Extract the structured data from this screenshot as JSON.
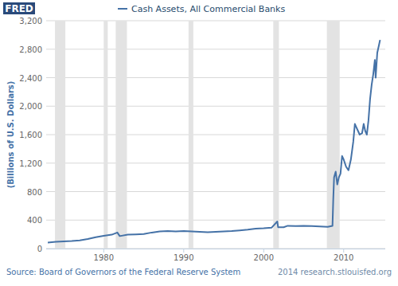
{
  "chart_data": {
    "type": "line",
    "logo": "FRED",
    "y_label": "(Billions of U.S. Dollars)",
    "source": "Source: Board of Governors of the Federal Reserve System",
    "credit": "2014 research.stlouisfed.org",
    "legend": "top",
    "grid": true,
    "xlim": [
      1972.8,
      2015.2
    ],
    "xticks": [
      1980,
      1990,
      2000,
      2010
    ],
    "ylim": [
      0,
      3200
    ],
    "yticks": [
      0,
      400,
      800,
      {
        "value": 1200,
        "label": "1,200"
      },
      {
        "value": 1600,
        "label": "1,600"
      },
      {
        "value": 2000,
        "label": "2,000"
      },
      {
        "value": 2400,
        "label": "2,400"
      },
      {
        "value": 2800,
        "label": "2,800"
      },
      {
        "value": 3200,
        "label": "3,200"
      }
    ],
    "recessions": [
      [
        1973.9,
        1975.2
      ],
      [
        1980.0,
        1980.5
      ],
      [
        1981.5,
        1982.9
      ],
      [
        1990.6,
        1991.2
      ],
      [
        2001.2,
        2001.9
      ],
      [
        2007.9,
        2009.5
      ]
    ],
    "x": [
      1973.0,
      1974.0,
      1975.0,
      1976.0,
      1977.0,
      1978.0,
      1979.0,
      1980.0,
      1981.0,
      1981.7,
      1982.0,
      1983.0,
      1984.0,
      1985.0,
      1986.0,
      1987.0,
      1988.0,
      1989.0,
      1990.0,
      1991.0,
      1992.0,
      1993.0,
      1994.0,
      1995.0,
      1996.0,
      1997.0,
      1998.0,
      1999.0,
      2000.0,
      2001.0,
      2001.7,
      2001.8,
      2002.5,
      2003.0,
      2004.0,
      2005.0,
      2006.0,
      2007.0,
      2008.0,
      2008.6,
      2008.7,
      2008.8,
      2009.0,
      2009.2,
      2009.4,
      2009.6,
      2009.8,
      2010.0,
      2010.3,
      2010.6,
      2010.9,
      2011.2,
      2011.4,
      2011.6,
      2011.8,
      2012.0,
      2012.3,
      2012.5,
      2012.7,
      2012.9,
      2013.1,
      2013.3,
      2013.5,
      2013.7,
      2013.9,
      2014.0,
      2014.2,
      2014.4,
      2014.55
    ],
    "series": [
      {
        "name": "Cash Assets, All Commercial Banks",
        "color": "#4572a7",
        "values": [
          85,
          95,
          100,
          105,
          115,
          135,
          160,
          180,
          195,
          225,
          175,
          195,
          200,
          205,
          225,
          240,
          245,
          240,
          245,
          240,
          235,
          230,
          235,
          240,
          245,
          255,
          265,
          280,
          285,
          295,
          380,
          300,
          300,
          320,
          315,
          320,
          315,
          310,
          305,
          320,
          700,
          1000,
          1080,
          900,
          1000,
          1050,
          1300,
          1250,
          1150,
          1100,
          1250,
          1500,
          1750,
          1700,
          1650,
          1600,
          1620,
          1750,
          1650,
          1600,
          1800,
          2100,
          2300,
          2450,
          2650,
          2400,
          2750,
          2850,
          2930
        ]
      }
    ]
  }
}
